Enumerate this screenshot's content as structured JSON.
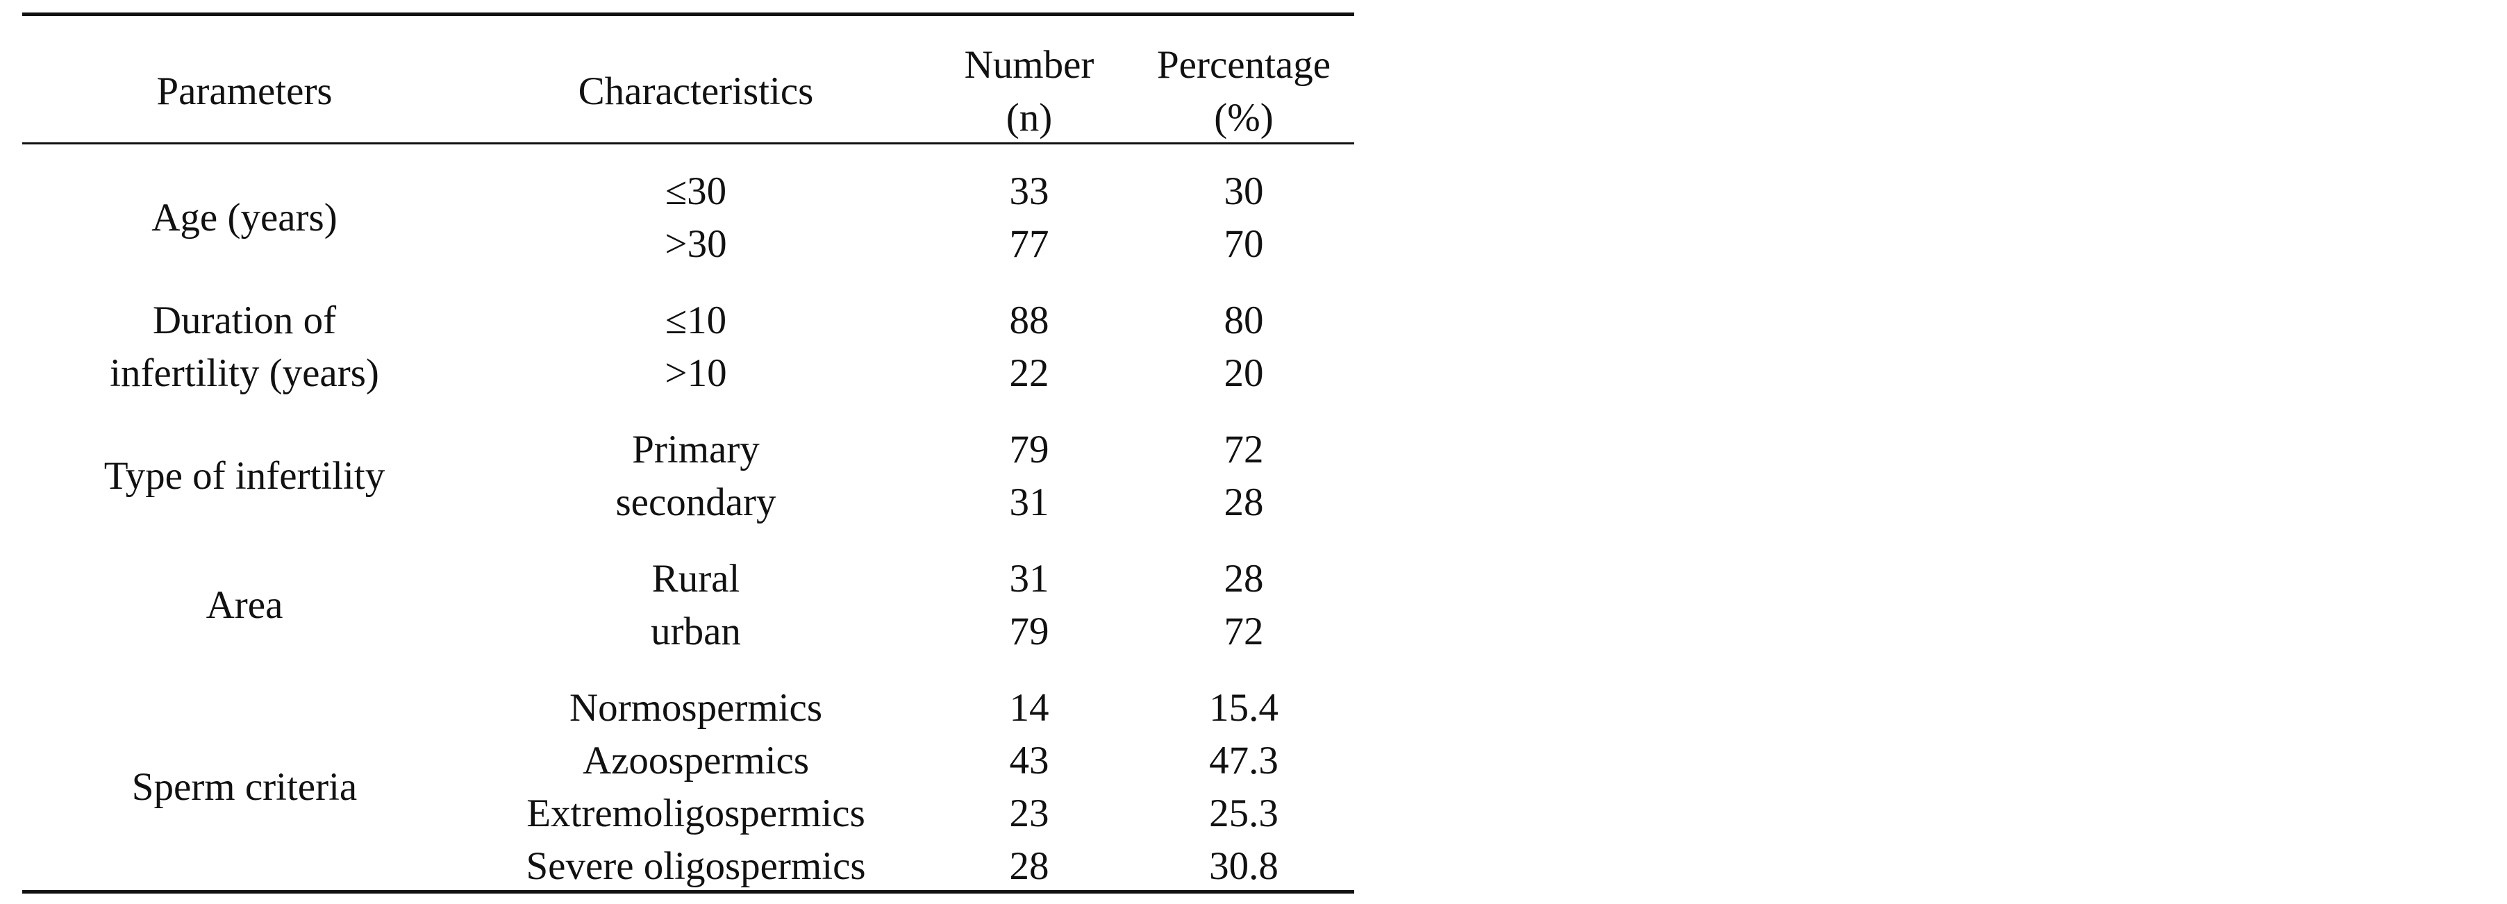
{
  "table": {
    "headers": {
      "parameters": "Parameters",
      "characteristics": "Characteristics",
      "number_line1": "Number",
      "number_line2": "(n)",
      "percentage_line1": "Percentage",
      "percentage_line2": "(%)"
    },
    "groups": [
      {
        "parameter_lines": [
          "Age (years)"
        ],
        "rows": [
          {
            "characteristic": "≤30",
            "number": "33",
            "percentage": "30"
          },
          {
            "characteristic": ">30",
            "number": "77",
            "percentage": "70"
          }
        ]
      },
      {
        "parameter_lines": [
          "Duration of",
          "infertility (years)"
        ],
        "rows": [
          {
            "characteristic": "≤10",
            "number": "88",
            "percentage": "80"
          },
          {
            "characteristic": ">10",
            "number": "22",
            "percentage": "20"
          }
        ]
      },
      {
        "parameter_lines": [
          "Type of infertility"
        ],
        "rows": [
          {
            "characteristic": "Primary",
            "number": "79",
            "percentage": "72"
          },
          {
            "characteristic": "secondary",
            "number": "31",
            "percentage": "28"
          }
        ]
      },
      {
        "parameter_lines": [
          "Area"
        ],
        "rows": [
          {
            "characteristic": "Rural",
            "number": "31",
            "percentage": "28"
          },
          {
            "characteristic": "urban",
            "number": "79",
            "percentage": "72"
          }
        ]
      },
      {
        "parameter_lines": [
          "Sperm criteria"
        ],
        "rows": [
          {
            "characteristic": "Normospermics",
            "number": "14",
            "percentage": "15.4"
          },
          {
            "characteristic": "Azoospermics",
            "number": "43",
            "percentage": "47.3"
          },
          {
            "characteristic": "Extremoligospermics",
            "number": "23",
            "percentage": "25.3"
          },
          {
            "characteristic": "Severe oligospermics",
            "number": "28",
            "percentage": "30.8"
          }
        ]
      }
    ]
  }
}
